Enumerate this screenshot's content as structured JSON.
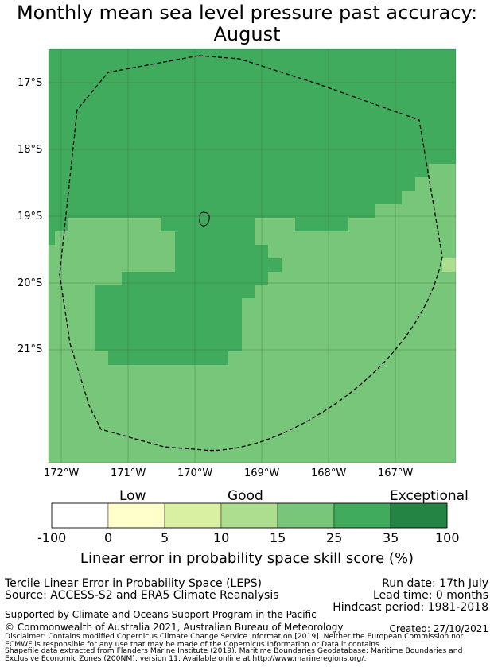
{
  "title": {
    "line1": "Monthly mean sea level pressure past accuracy:",
    "line2": "August"
  },
  "map": {
    "lat_labels": [
      "17°S",
      "18°S",
      "19°S",
      "20°S",
      "21°S"
    ],
    "lon_labels": [
      "172°W",
      "171°W",
      "170°W",
      "169°W",
      "168°W",
      "167°W"
    ],
    "grid_lines": true,
    "boundary_style": "dashed",
    "island_outline": true,
    "field_categories": {
      "dark": "25 to 35",
      "medium": "15 to 25",
      "light": "10 to 15"
    }
  },
  "colorbar": {
    "category_labels": [
      "Low",
      "Good",
      "Exceptional"
    ],
    "ticks": [
      "-100",
      "0",
      "5",
      "10",
      "15",
      "25",
      "35",
      "100"
    ],
    "colors": [
      "#ffffff",
      "#ffffcc",
      "#d9f0a3",
      "#addd8e",
      "#78c679",
      "#41ab5d",
      "#238443"
    ],
    "title": "Linear error in probability space skill score (%)"
  },
  "footer": {
    "line1": "Tercile Linear Error in Probability Space (LEPS)",
    "line2": "Source: ACCESS-S2 and ERA5 Climate Reanalysis",
    "run_date": "Run date: 17th July",
    "lead_time": "Lead time: 0 months",
    "hindcast": "Hindcast period: 1981-2018",
    "support": "Supported by Climate and Oceans Support Program in the Pacific",
    "copyright": "© Commonwealth of Australia 2021, Australian Bureau of Meteorology",
    "created": "Created: 27/10/2021",
    "disclaimer1": "Disclaimer: Contains modified Copernicus Climate Change Service Information [2019]. Neither the European Commission nor",
    "disclaimer2": "ECMWF is responsible for any use that may be made of the Copernicus Information or Data it contains.",
    "shapefile1": "Shapefile data extracted from Flanders Marine Institute (2019), Maritime Boundaries Geodatabase: Maritime Boundaries and",
    "shapefile2": "Exclusive Economic Zones (200NM), version 11. Available online at http://www.marineregions.org/."
  }
}
